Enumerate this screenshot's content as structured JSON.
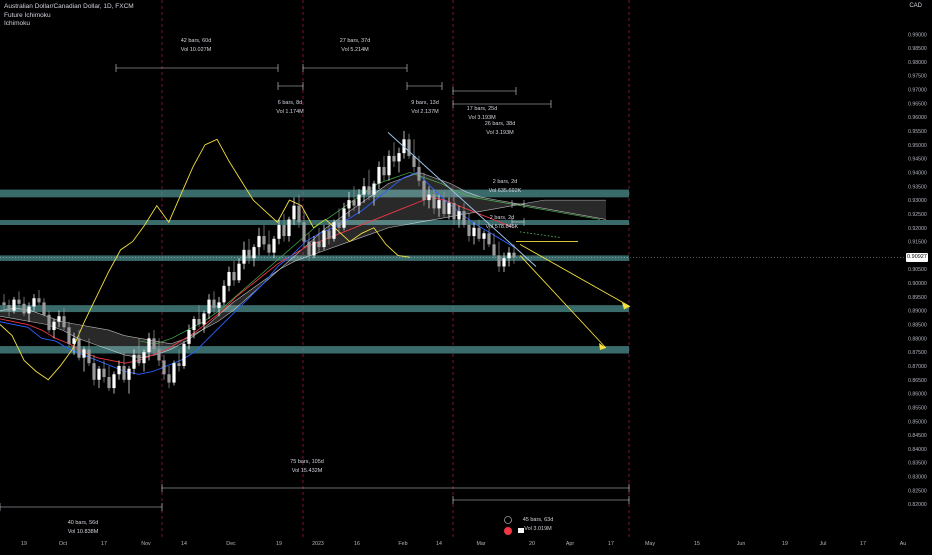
{
  "header": {
    "symbol": "Australian Dollar/Canadian Dollar, 1D, FXCM",
    "indicator_1": "Future Ichimoku",
    "indicator_2": "Ichimoku",
    "currency": "CAD"
  },
  "chart_data": {
    "type": "candlestick",
    "title": "Australian Dollar/Canadian Dollar, 1D, FXCM",
    "ylabel": "CAD",
    "ylim": [
      0.815,
      0.9995
    ],
    "y_ticks": [
      "0.99000",
      "0.98500",
      "0.98000",
      "0.97500",
      "0.97000",
      "0.96500",
      "0.96000",
      "0.95500",
      "0.95000",
      "0.94500",
      "0.94000",
      "0.93500",
      "0.93000",
      "0.92500",
      "0.92000",
      "0.91500",
      "0.91000",
      "0.90500",
      "0.90000",
      "0.89500",
      "0.89000",
      "0.88500",
      "0.88000",
      "0.87500",
      "0.87000",
      "0.86500",
      "0.86000",
      "0.85500",
      "0.85000",
      "0.84500",
      "0.84000",
      "0.83500",
      "0.83000",
      "0.82500",
      "0.82000"
    ],
    "x_ticks": [
      "19",
      "Oct",
      "17",
      "Nov",
      "14",
      "Dec",
      "19",
      "2023",
      "16",
      "Feb",
      "14",
      "Mar",
      "20",
      "Apr",
      "17",
      "May",
      "15",
      "Jun",
      "19",
      "Jul",
      "17",
      "Au"
    ],
    "current_price": "0.90927",
    "current_price_value": 0.90927,
    "ohlc_data": [
      [
        0.893,
        0.896,
        0.89,
        0.892
      ],
      [
        0.892,
        0.894,
        0.888,
        0.89
      ],
      [
        0.89,
        0.895,
        0.889,
        0.894
      ],
      [
        0.894,
        0.897,
        0.891,
        0.8925
      ],
      [
        0.8925,
        0.895,
        0.888,
        0.889
      ],
      [
        0.889,
        0.893,
        0.886,
        0.8915
      ],
      [
        0.8915,
        0.896,
        0.89,
        0.8945
      ],
      [
        0.8945,
        0.8975,
        0.892,
        0.893
      ],
      [
        0.893,
        0.8945,
        0.888,
        0.8885
      ],
      [
        0.8885,
        0.89,
        0.882,
        0.883
      ],
      [
        0.883,
        0.887,
        0.88,
        0.886
      ],
      [
        0.886,
        0.89,
        0.884,
        0.888
      ],
      [
        0.888,
        0.891,
        0.883,
        0.884
      ],
      [
        0.884,
        0.886,
        0.877,
        0.878
      ],
      [
        0.878,
        0.882,
        0.874,
        0.88
      ],
      [
        0.88,
        0.883,
        0.872,
        0.873
      ],
      [
        0.873,
        0.877,
        0.868,
        0.876
      ],
      [
        0.876,
        0.88,
        0.87,
        0.871
      ],
      [
        0.871,
        0.874,
        0.863,
        0.865
      ],
      [
        0.865,
        0.87,
        0.862,
        0.869
      ],
      [
        0.869,
        0.872,
        0.864,
        0.866
      ],
      [
        0.866,
        0.87,
        0.861,
        0.862
      ],
      [
        0.862,
        0.868,
        0.86,
        0.867
      ],
      [
        0.867,
        0.872,
        0.865,
        0.87
      ],
      [
        0.87,
        0.875,
        0.864,
        0.865
      ],
      [
        0.865,
        0.87,
        0.86,
        0.869
      ],
      [
        0.869,
        0.876,
        0.867,
        0.874
      ],
      [
        0.874,
        0.88,
        0.87,
        0.871
      ],
      [
        0.871,
        0.876,
        0.868,
        0.875
      ],
      [
        0.875,
        0.882,
        0.872,
        0.88
      ],
      [
        0.88,
        0.883,
        0.874,
        0.876
      ],
      [
        0.876,
        0.88,
        0.87,
        0.872
      ],
      [
        0.872,
        0.874,
        0.865,
        0.867
      ],
      [
        0.867,
        0.87,
        0.862,
        0.864
      ],
      [
        0.864,
        0.872,
        0.863,
        0.871
      ],
      [
        0.871,
        0.876,
        0.868,
        0.87
      ],
      [
        0.87,
        0.879,
        0.869,
        0.878
      ],
      [
        0.878,
        0.885,
        0.876,
        0.883
      ],
      [
        0.883,
        0.888,
        0.88,
        0.887
      ],
      [
        0.887,
        0.892,
        0.884,
        0.885
      ],
      [
        0.885,
        0.89,
        0.882,
        0.889
      ],
      [
        0.889,
        0.896,
        0.887,
        0.894
      ],
      [
        0.894,
        0.897,
        0.889,
        0.891
      ],
      [
        0.891,
        0.895,
        0.888,
        0.893
      ],
      [
        0.893,
        0.901,
        0.892,
        0.899
      ],
      [
        0.899,
        0.906,
        0.897,
        0.904
      ],
      [
        0.904,
        0.908,
        0.899,
        0.901
      ],
      [
        0.901,
        0.909,
        0.9,
        0.907
      ],
      [
        0.907,
        0.915,
        0.905,
        0.912
      ],
      [
        0.912,
        0.916,
        0.907,
        0.909
      ],
      [
        0.909,
        0.914,
        0.906,
        0.913
      ],
      [
        0.913,
        0.92,
        0.91,
        0.917
      ],
      [
        0.917,
        0.921,
        0.912,
        0.914
      ],
      [
        0.914,
        0.919,
        0.91,
        0.911
      ],
      [
        0.911,
        0.917,
        0.909,
        0.916
      ],
      [
        0.916,
        0.923,
        0.914,
        0.921
      ],
      [
        0.921,
        0.925,
        0.915,
        0.917
      ],
      [
        0.917,
        0.924,
        0.915,
        0.923
      ],
      [
        0.923,
        0.931,
        0.921,
        0.928
      ],
      [
        0.928,
        0.932,
        0.92,
        0.922
      ],
      [
        0.922,
        0.926,
        0.913,
        0.915
      ],
      [
        0.915,
        0.918,
        0.908,
        0.91
      ],
      [
        0.91,
        0.917,
        0.909,
        0.915
      ],
      [
        0.915,
        0.92,
        0.911,
        0.913
      ],
      [
        0.913,
        0.921,
        0.912,
        0.919
      ],
      [
        0.919,
        0.922,
        0.914,
        0.916
      ],
      [
        0.916,
        0.923,
        0.915,
        0.922
      ],
      [
        0.922,
        0.927,
        0.918,
        0.92
      ],
      [
        0.92,
        0.929,
        0.919,
        0.927
      ],
      [
        0.927,
        0.933,
        0.924,
        0.93
      ],
      [
        0.93,
        0.935,
        0.926,
        0.928
      ],
      [
        0.928,
        0.934,
        0.925,
        0.932
      ],
      [
        0.932,
        0.938,
        0.929,
        0.935
      ],
      [
        0.935,
        0.941,
        0.93,
        0.932
      ],
      [
        0.932,
        0.937,
        0.928,
        0.936
      ],
      [
        0.936,
        0.944,
        0.934,
        0.942
      ],
      [
        0.942,
        0.946,
        0.937,
        0.939
      ],
      [
        0.939,
        0.948,
        0.937,
        0.946
      ],
      [
        0.946,
        0.951,
        0.942,
        0.944
      ],
      [
        0.944,
        0.949,
        0.94,
        0.947
      ],
      [
        0.947,
        0.955,
        0.945,
        0.952
      ],
      [
        0.952,
        0.954,
        0.945,
        0.946
      ],
      [
        0.946,
        0.952,
        0.94,
        0.942
      ],
      [
        0.942,
        0.946,
        0.935,
        0.937
      ],
      [
        0.937,
        0.94,
        0.928,
        0.93
      ],
      [
        0.93,
        0.935,
        0.927,
        0.932
      ],
      [
        0.932,
        0.934,
        0.925,
        0.927
      ],
      [
        0.927,
        0.932,
        0.924,
        0.93
      ],
      [
        0.93,
        0.933,
        0.924,
        0.925
      ],
      [
        0.925,
        0.931,
        0.923,
        0.929
      ],
      [
        0.929,
        0.932,
        0.921,
        0.923
      ],
      [
        0.923,
        0.928,
        0.92,
        0.926
      ],
      [
        0.926,
        0.929,
        0.92,
        0.921
      ],
      [
        0.921,
        0.925,
        0.915,
        0.917
      ],
      [
        0.917,
        0.922,
        0.914,
        0.92
      ],
      [
        0.92,
        0.923,
        0.915,
        0.916
      ],
      [
        0.916,
        0.919,
        0.912,
        0.918
      ],
      [
        0.918,
        0.92,
        0.913,
        0.914
      ],
      [
        0.914,
        0.918,
        0.909,
        0.91
      ],
      [
        0.91,
        0.915,
        0.904,
        0.906
      ],
      [
        0.906,
        0.911,
        0.904,
        0.909
      ],
      [
        0.909,
        0.913,
        0.906,
        0.911
      ],
      [
        0.911,
        0.914,
        0.907,
        0.9093
      ]
    ],
    "conversion_line": [
      0.886,
      0.885,
      0.884,
      0.88,
      0.879,
      0.876,
      0.874,
      0.872,
      0.87,
      0.868,
      0.867,
      0.868,
      0.87,
      0.872,
      0.875,
      0.88,
      0.885,
      0.89,
      0.895,
      0.9,
      0.906,
      0.91,
      0.915,
      0.918,
      0.92,
      0.923,
      0.926,
      0.93,
      0.934,
      0.938,
      0.94,
      0.935,
      0.93,
      0.926,
      0.922,
      0.919,
      0.916,
      0.913
    ],
    "base_line": [
      0.887,
      0.886,
      0.885,
      0.883,
      0.88,
      0.878,
      0.875,
      0.873,
      0.872,
      0.871,
      0.872,
      0.874,
      0.876,
      0.879,
      0.882,
      0.886,
      0.89,
      0.895,
      0.899,
      0.903,
      0.907,
      0.91,
      0.913,
      0.915,
      0.917,
      0.919,
      0.921,
      0.923,
      0.925,
      0.927,
      0.929,
      0.931,
      0.93,
      0.928,
      0.926,
      0.924,
      0.922,
      0.92
    ],
    "lagging_span": [
      0.885,
      0.881,
      0.872,
      0.868,
      0.865,
      0.87,
      0.876,
      0.886,
      0.895,
      0.904,
      0.912,
      0.915,
      0.921,
      0.928,
      0.922,
      0.932,
      0.942,
      0.95,
      0.952,
      0.944,
      0.937,
      0.93,
      0.926,
      0.922,
      0.93,
      0.928,
      0.92,
      0.923,
      0.919,
      0.915,
      0.918,
      0.92,
      0.914,
      0.91,
      0.9093
    ],
    "kumo_span_a": [
      0.89,
      0.891,
      0.89,
      0.888,
      0.886,
      0.885,
      0.884,
      0.883,
      0.881,
      0.88,
      0.879,
      0.878,
      0.88,
      0.883,
      0.886,
      0.89,
      0.895,
      0.9,
      0.905,
      0.91,
      0.915,
      0.92,
      0.924,
      0.928,
      0.932,
      0.936,
      0.938,
      0.94,
      0.938,
      0.936,
      0.933,
      0.931,
      0.93,
      0.929,
      0.928,
      0.927,
      0.926,
      0.925,
      0.924,
      0.923
    ],
    "kumo_span_b": [
      0.888,
      0.887,
      0.886,
      0.885,
      0.883,
      0.88,
      0.878,
      0.876,
      0.874,
      0.873,
      0.874,
      0.876,
      0.879,
      0.883,
      0.888,
      0.893,
      0.897,
      0.901,
      0.905,
      0.908,
      0.91,
      0.912,
      0.914,
      0.916,
      0.918,
      0.92,
      0.921,
      0.922,
      0.923,
      0.924,
      0.925,
      0.926,
      0.927,
      0.928,
      0.929,
      0.93,
      0.93,
      0.93,
      0.93,
      0.93
    ],
    "zones": [
      {
        "name": "zone-a",
        "y1": 0.9338,
        "y2": 0.931
      },
      {
        "name": "zone-b",
        "y1": 0.9228,
        "y2": 0.921
      },
      {
        "name": "zone-c",
        "y1": 0.91,
        "y2": 0.908
      },
      {
        "name": "zone-d",
        "y1": 0.892,
        "y2": 0.8895
      },
      {
        "name": "zone-e",
        "y1": 0.8772,
        "y2": 0.8745
      }
    ],
    "measurements": [
      {
        "bars": "42 bars, 60d",
        "vol": "Vol 10.027M"
      },
      {
        "bars": "27 bars, 37d",
        "vol": "Vol 5.214M"
      },
      {
        "bars": "6 bars, 8d",
        "vol": "Vol 1.174M"
      },
      {
        "bars": "9 bars, 13d",
        "vol": "Vol 2.137M"
      },
      {
        "bars": "17 bars, 25d",
        "vol": "Vol 3.193M"
      },
      {
        "bars": "26 bars, 38d",
        "vol": "Vol 3.193M"
      },
      {
        "bars": "2 bars, 2d",
        "vol": "Vol 635.692K"
      },
      {
        "bars": "2 bars, 2d",
        "vol": "Vol 578.845K"
      },
      {
        "bars": "75 bars, 105d",
        "vol": "Vol 15.432M"
      },
      {
        "bars": "40 bars, 56d",
        "vol": "Vol 10.838M"
      },
      {
        "bars": "45 bars, 63d",
        "vol": "Vol 3.019M"
      }
    ],
    "colors": {
      "background": "#000000",
      "up": "#ffffff",
      "down": "#9a9a9a",
      "conversion": "#2962ff",
      "base": "#f23645",
      "lagging": "#f5e13c",
      "span_a": "#4caf50",
      "cloud": "#ffffff",
      "zone": "#4e8f8f",
      "arrow": "#f5e13c",
      "vline": "#c2185b"
    }
  }
}
